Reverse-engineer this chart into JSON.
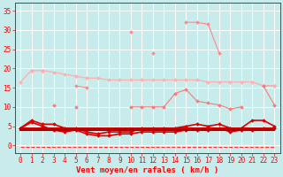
{
  "x": [
    0,
    1,
    2,
    3,
    4,
    5,
    6,
    7,
    8,
    9,
    10,
    11,
    12,
    13,
    14,
    15,
    16,
    17,
    18,
    19,
    20,
    21,
    22,
    23
  ],
  "series": [
    {
      "name": "rafales_spiky",
      "color": "#FF8888",
      "linewidth": 0.8,
      "marker": "D",
      "markersize": 2.0,
      "values": [
        null,
        null,
        null,
        null,
        null,
        null,
        null,
        null,
        null,
        null,
        29.5,
        null,
        24.0,
        null,
        null,
        32.0,
        32.0,
        31.5,
        24.0,
        null,
        null,
        null,
        null,
        null
      ]
    },
    {
      "name": "rafales_low",
      "color": "#FF8888",
      "linewidth": 0.8,
      "marker": "D",
      "markersize": 2.0,
      "values": [
        null,
        19.5,
        19.5,
        null,
        null,
        15.5,
        15.0,
        null,
        null,
        null,
        null,
        null,
        null,
        null,
        null,
        null,
        null,
        null,
        null,
        null,
        null,
        null,
        15.5,
        15.5
      ]
    },
    {
      "name": "line_declining",
      "color": "#FFB0B0",
      "linewidth": 1.0,
      "marker": "D",
      "markersize": 2.0,
      "values": [
        16.5,
        19.5,
        19.5,
        19.0,
        18.5,
        18.0,
        17.5,
        17.5,
        17.0,
        17.0,
        17.0,
        17.0,
        17.0,
        17.0,
        17.0,
        17.0,
        17.0,
        16.5,
        16.5,
        16.5,
        16.5,
        16.5,
        15.5,
        15.5
      ]
    },
    {
      "name": "line_medium",
      "color": "#FF7777",
      "linewidth": 0.8,
      "marker": "D",
      "markersize": 2.0,
      "values": [
        null,
        null,
        null,
        10.5,
        null,
        10.0,
        null,
        null,
        null,
        null,
        10.0,
        10.0,
        10.0,
        10.0,
        13.5,
        14.5,
        11.5,
        11.0,
        10.5,
        9.5,
        10.0,
        null,
        15.5,
        10.5
      ]
    },
    {
      "name": "line_low_upper",
      "color": "#DD0000",
      "linewidth": 1.2,
      "marker": "D",
      "markersize": 2.0,
      "values": [
        4.5,
        6.5,
        5.5,
        5.5,
        4.5,
        4.5,
        3.5,
        3.0,
        3.5,
        3.5,
        3.5,
        4.5,
        4.5,
        4.5,
        4.5,
        5.0,
        5.5,
        5.0,
        5.5,
        4.5,
        4.5,
        6.5,
        6.5,
        5.0
      ]
    },
    {
      "name": "line_low_lower",
      "color": "#DD0000",
      "linewidth": 1.2,
      "marker": "D",
      "markersize": 2.0,
      "values": [
        4.5,
        6.0,
        5.0,
        4.0,
        3.5,
        4.0,
        3.0,
        2.5,
        2.5,
        3.0,
        3.0,
        3.5,
        3.5,
        3.5,
        3.5,
        4.0,
        4.0,
        4.0,
        4.5,
        3.5,
        4.0,
        4.0,
        4.5,
        4.5
      ]
    },
    {
      "name": "line_flat1",
      "color": "#CC0000",
      "linewidth": 1.5,
      "marker": null,
      "markersize": 0,
      "values": [
        4.5,
        4.5,
        4.5,
        4.5,
        4.5,
        4.5,
        4.5,
        4.5,
        4.5,
        4.5,
        4.5,
        4.5,
        4.5,
        4.5,
        4.5,
        4.5,
        4.5,
        4.5,
        4.5,
        4.5,
        4.5,
        4.5,
        4.5,
        4.5
      ]
    },
    {
      "name": "line_flat2",
      "color": "#AA0000",
      "linewidth": 1.5,
      "marker": null,
      "markersize": 0,
      "values": [
        4.0,
        4.0,
        4.0,
        4.0,
        4.0,
        4.0,
        4.0,
        4.0,
        4.0,
        4.0,
        4.0,
        4.0,
        4.0,
        4.0,
        4.0,
        4.0,
        4.0,
        4.0,
        4.0,
        4.0,
        4.0,
        4.0,
        4.0,
        4.0
      ]
    },
    {
      "name": "dashed_bottom",
      "color": "#FF3333",
      "linewidth": 0.8,
      "linestyle": "--",
      "marker": null,
      "markersize": 0,
      "values": [
        -0.5,
        -0.5,
        -0.5,
        -0.5,
        -0.5,
        -0.5,
        -0.5,
        -0.5,
        -0.5,
        -0.5,
        -0.5,
        -0.5,
        -0.5,
        -0.5,
        -0.5,
        -0.5,
        -0.5,
        -0.5,
        -0.5,
        -0.5,
        -0.5,
        -0.5,
        -0.5,
        -0.5
      ]
    }
  ],
  "xlabel": "Vent moyen/en rafales ( km/h )",
  "xlim": [
    -0.5,
    23.5
  ],
  "ylim": [
    -2,
    37
  ],
  "yticks": [
    0,
    5,
    10,
    15,
    20,
    25,
    30,
    35
  ],
  "xticks": [
    0,
    1,
    2,
    3,
    4,
    5,
    6,
    7,
    8,
    9,
    10,
    11,
    12,
    13,
    14,
    15,
    16,
    17,
    18,
    19,
    20,
    21,
    22,
    23
  ],
  "bg_color": "#C8ECEC",
  "grid_color": "#FFFFFF",
  "tick_color": "#FF0000",
  "label_color": "#FF0000",
  "tick_fontsize": 5.5,
  "xlabel_fontsize": 6.5
}
